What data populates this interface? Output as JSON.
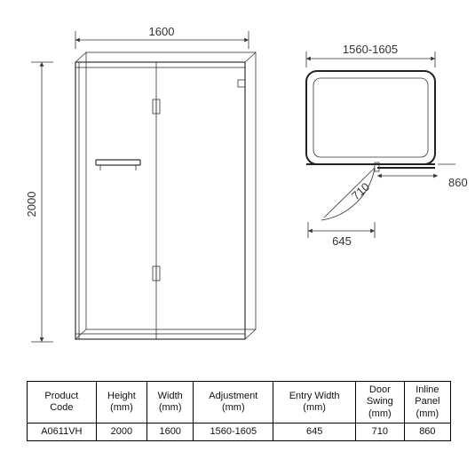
{
  "front": {
    "width_label": "1600",
    "height_label": "2000"
  },
  "plan": {
    "width_range": "1560-1605",
    "swing": "710",
    "entry": "645",
    "inline": "860"
  },
  "table": {
    "columns": [
      "Product\nCode",
      "Height\n(mm)",
      "Width\n(mm)",
      "Adjustment\n(mm)",
      "Entry Width\n(mm)",
      "Door\nSwing\n(mm)",
      "Inline\nPanel\n(mm)"
    ],
    "row": [
      "A0611VH",
      "2000",
      "1600",
      "1560-1605",
      "645",
      "710",
      "860"
    ]
  },
  "style": {
    "background": "#ffffff",
    "line_color": "#333333",
    "text_color": "#333333",
    "table_border": "#000000",
    "font_size_dim": 13,
    "font_size_table": 11
  }
}
